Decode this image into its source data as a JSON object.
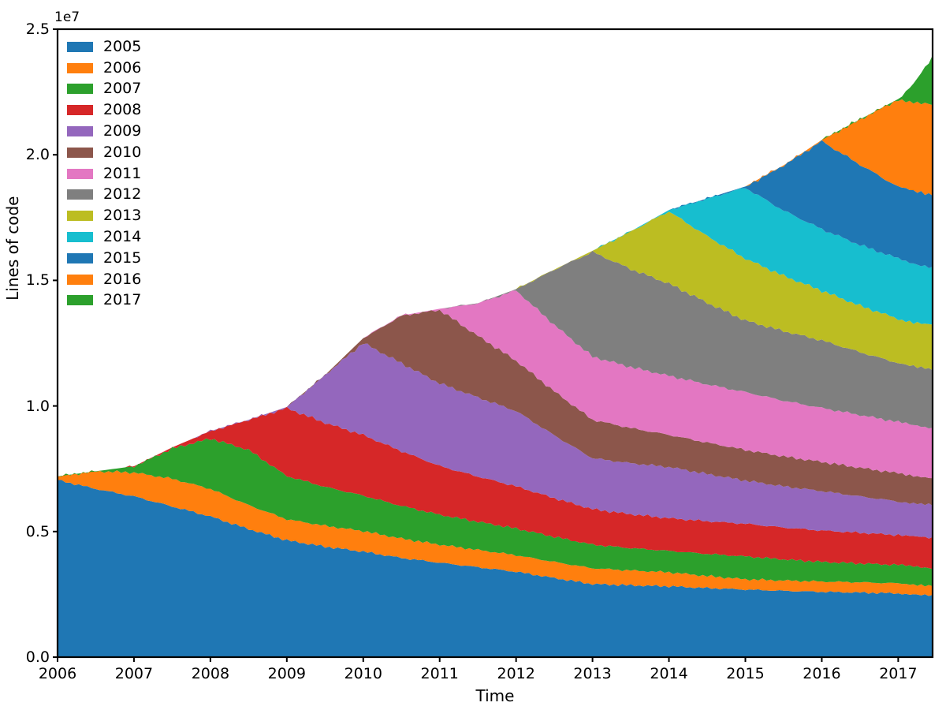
{
  "chart_data": {
    "type": "area",
    "stacked": true,
    "title": "",
    "xlabel": "Time",
    "ylabel": "Lines of code",
    "y_offset_label": "1e7",
    "grid": false,
    "legend_position": "upper left",
    "xlim": [
      2006,
      2017.45
    ],
    "ylim": [
      0,
      25000000
    ],
    "x_ticks": [
      2006,
      2007,
      2008,
      2009,
      2010,
      2011,
      2012,
      2013,
      2014,
      2015,
      2016,
      2017
    ],
    "x_tick_labels": [
      "2006",
      "2007",
      "2008",
      "2009",
      "2010",
      "2011",
      "2012",
      "2013",
      "2014",
      "2015",
      "2016",
      "2017"
    ],
    "y_ticks": [
      0,
      5000000,
      10000000,
      15000000,
      20000000,
      25000000
    ],
    "y_tick_labels": [
      "0.0",
      "0.5",
      "1.0",
      "1.5",
      "2.0",
      "2.5"
    ],
    "legend": [
      "2005",
      "2006",
      "2007",
      "2008",
      "2009",
      "2010",
      "2011",
      "2012",
      "2013",
      "2014",
      "2015",
      "2016",
      "2017"
    ],
    "values_unit": "millions of lines of code",
    "x": [
      2006,
      2006.5,
      2007,
      2007.5,
      2008,
      2008.5,
      2009,
      2009.5,
      2010,
      2010.5,
      2011,
      2011.5,
      2012,
      2012.5,
      2013,
      2013.5,
      2014,
      2014.5,
      2015,
      2015.5,
      2016,
      2016.5,
      2017,
      2017.2,
      2017.45
    ],
    "series": [
      {
        "name": "2005",
        "color": "#1f77b4",
        "values": [
          7.05,
          6.7,
          6.4,
          6.0,
          5.6,
          5.1,
          4.65,
          4.4,
          4.2,
          3.95,
          3.76,
          3.58,
          3.4,
          3.15,
          2.91,
          2.86,
          2.82,
          2.75,
          2.69,
          2.64,
          2.6,
          2.57,
          2.54,
          2.5,
          2.44
        ]
      },
      {
        "name": "2006",
        "color": "#ff7f0e",
        "values": [
          0.15,
          0.7,
          0.95,
          1.1,
          1.1,
          0.95,
          0.84,
          0.83,
          0.82,
          0.77,
          0.72,
          0.69,
          0.66,
          0.64,
          0.63,
          0.59,
          0.56,
          0.48,
          0.41,
          0.41,
          0.41,
          0.41,
          0.4,
          0.4,
          0.41
        ]
      },
      {
        "name": "2007",
        "color": "#2ca02c",
        "values": [
          0,
          0,
          0.25,
          1.2,
          2.0,
          2.2,
          1.72,
          1.55,
          1.41,
          1.3,
          1.19,
          1.12,
          1.06,
          1.0,
          0.94,
          0.89,
          0.85,
          0.88,
          0.91,
          0.84,
          0.78,
          0.75,
          0.73,
          0.71,
          0.69
        ]
      },
      {
        "name": "2008",
        "color": "#d62728",
        "values": [
          0,
          0,
          0,
          0.05,
          0.3,
          1.2,
          2.7,
          2.55,
          2.41,
          2.18,
          1.94,
          1.8,
          1.68,
          1.54,
          1.41,
          1.35,
          1.3,
          1.3,
          1.3,
          1.27,
          1.25,
          1.22,
          1.19,
          1.19,
          1.19
        ]
      },
      {
        "name": "2009",
        "color": "#9467bd",
        "values": [
          0,
          0,
          0,
          0,
          0,
          0,
          0.05,
          1.9,
          3.67,
          3.5,
          3.29,
          3.15,
          3.0,
          2.5,
          2.03,
          2.03,
          2.04,
          1.88,
          1.72,
          1.64,
          1.57,
          1.45,
          1.34,
          1.33,
          1.32
        ]
      },
      {
        "name": "2010",
        "color": "#8c564b",
        "values": [
          0,
          0,
          0,
          0,
          0,
          0,
          0,
          0,
          0.19,
          1.9,
          2.92,
          2.45,
          2.0,
          1.75,
          1.53,
          1.4,
          1.28,
          1.25,
          1.22,
          1.19,
          1.16,
          1.14,
          1.12,
          1.1,
          1.09
        ]
      },
      {
        "name": "2011",
        "color": "#e377c2",
        "values": [
          0,
          0,
          0,
          0,
          0,
          0,
          0,
          0,
          0,
          0,
          0.05,
          1.3,
          2.8,
          2.65,
          2.51,
          2.43,
          2.35,
          2.32,
          2.3,
          2.22,
          2.15,
          2.1,
          2.04,
          2.0,
          1.98
        ]
      },
      {
        "name": "2012",
        "color": "#7f7f7f",
        "values": [
          0,
          0,
          0,
          0,
          0,
          0,
          0,
          0,
          0,
          0,
          0,
          0,
          0.05,
          2.2,
          4.17,
          3.9,
          3.67,
          3.25,
          2.85,
          2.77,
          2.69,
          2.5,
          2.35,
          2.33,
          2.32
        ]
      },
      {
        "name": "2013",
        "color": "#bcbd22",
        "values": [
          0,
          0,
          0,
          0,
          0,
          0,
          0,
          0,
          0,
          0,
          0,
          0,
          0,
          0,
          0.05,
          1.5,
          2.88,
          2.65,
          2.47,
          2.2,
          1.98,
          1.85,
          1.76,
          1.77,
          1.78
        ]
      },
      {
        "name": "2014",
        "color": "#17becf",
        "values": [
          0,
          0,
          0,
          0,
          0,
          0,
          0,
          0,
          0,
          0,
          0,
          0,
          0,
          0,
          0,
          0,
          0.05,
          1.5,
          2.82,
          2.6,
          2.45,
          2.42,
          2.4,
          2.35,
          2.3
        ]
      },
      {
        "name": "2015",
        "color": "#1f77b4",
        "values": [
          0,
          0,
          0,
          0,
          0,
          0,
          0,
          0,
          0,
          0,
          0,
          0,
          0,
          0,
          0,
          0,
          0,
          0,
          0.05,
          1.8,
          3.5,
          3.2,
          2.85,
          2.87,
          2.9
        ]
      },
      {
        "name": "2016",
        "color": "#ff7f0e",
        "values": [
          0,
          0,
          0,
          0,
          0,
          0,
          0,
          0,
          0,
          0,
          0,
          0,
          0,
          0,
          0,
          0,
          0,
          0,
          0,
          0,
          0.05,
          1.8,
          3.48,
          3.5,
          3.57
        ]
      },
      {
        "name": "2017",
        "color": "#2ca02c",
        "values": [
          0,
          0,
          0,
          0,
          0,
          0,
          0,
          0,
          0,
          0,
          0,
          0,
          0,
          0,
          0,
          0,
          0,
          0,
          0,
          0,
          0,
          0,
          0.02,
          0.8,
          1.88
        ]
      }
    ]
  }
}
